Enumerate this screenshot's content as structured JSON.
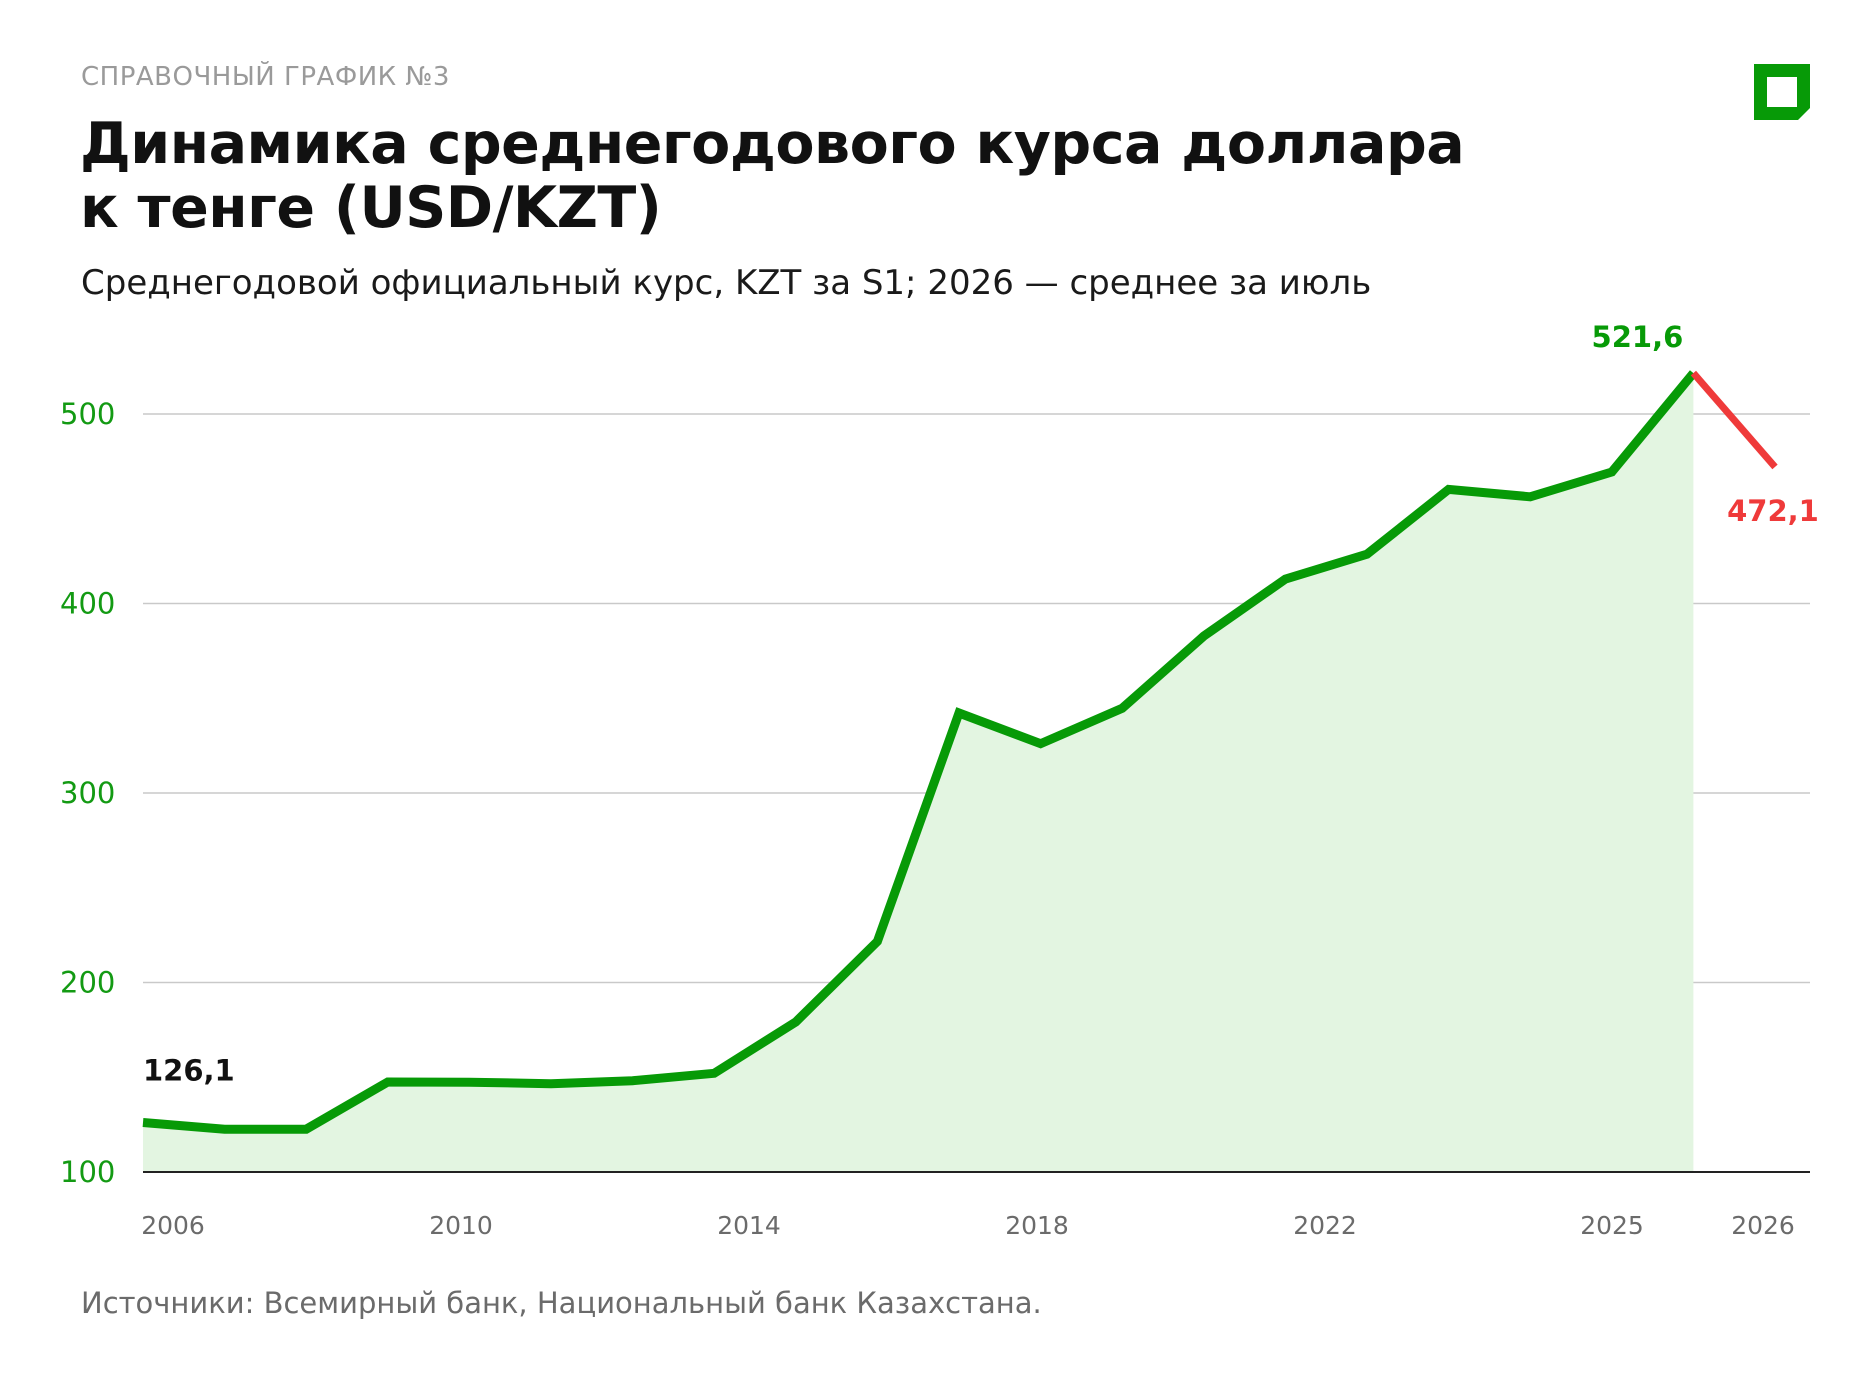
{
  "header": {
    "kicker": "СПРАВОЧНЫЙ ГРАФИК №3",
    "title_line1": "Динамика среднегодового курса доллара",
    "title_line2": "к тенге (USD/KZT)",
    "subtitle": "Среднегодовой официальный курс, KZT за S1; 2026 — среднее за июль"
  },
  "footer": {
    "source": "Источники: Всемирный банк, Национальный банк Казахстана."
  },
  "colors": {
    "main_line": "#079a07",
    "area_fill": "#e3f5e1",
    "forecast_line": "#ef3a3a",
    "grid": "#c9c9c9",
    "axis": "#222222",
    "label_dark": "#111111"
  },
  "chart_data": {
    "type": "line",
    "x_tick_labels": [
      "2006",
      "2010",
      "2014",
      "2018",
      "2022",
      "2025",
      "2026"
    ],
    "y_ticks": [
      100,
      200,
      300,
      400,
      500
    ],
    "ylim": [
      100,
      540
    ],
    "series": [
      {
        "values": [
          126.1,
          122.6,
          122.6,
          147.5,
          147.4,
          146.6,
          148.2,
          152.1,
          179.2,
          221.7,
          342.2,
          326.0,
          344.7,
          382.8,
          412.9,
          426.0,
          460.2,
          456.3,
          469.4,
          521.6
        ]
      },
      {
        "values": [
          521.6,
          472.1
        ]
      }
    ],
    "annotations": [
      {
        "label": "126,1",
        "point": 0
      },
      {
        "label": "521,6",
        "point": 19
      },
      {
        "label": "472,1",
        "point": 20
      }
    ],
    "grid": true
  }
}
